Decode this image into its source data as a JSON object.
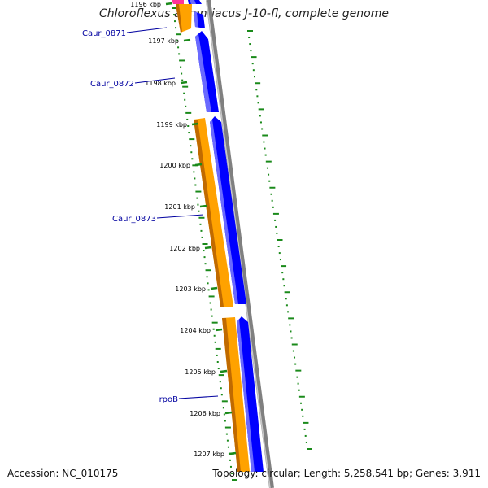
{
  "title": "Chloroflexus aurantiacus J-10-fl, complete genome",
  "accession": "Accession: NC_010175",
  "summary": "Topology: circular; Length: 5,258,541 bp; Genes: 3,911",
  "colors": {
    "forward_gene": "#ffa200",
    "forward_gene_shadow": "#c06a00",
    "reverse_gene": "#0000ff",
    "reverse_gene_highlight": "#6a6aff",
    "pink_gene": "#ff3399",
    "backbone": "#808080",
    "gc_ticks": "#1a8a1a",
    "kbp_tick": "#1a8a1a",
    "gene_label": "#0000a0"
  },
  "ruler": {
    "ticks": [
      {
        "label": "1196 kbp",
        "kbp": 1196
      },
      {
        "label": "1197 kbp",
        "kbp": 1197
      },
      {
        "label": "1198 kbp",
        "kbp": 1198
      },
      {
        "label": "1199 kbp",
        "kbp": 1199
      },
      {
        "label": "1200 kbp",
        "kbp": 1200
      },
      {
        "label": "1201 kbp",
        "kbp": 1201
      },
      {
        "label": "1202 kbp",
        "kbp": 1202
      },
      {
        "label": "1203 kbp",
        "kbp": 1203
      },
      {
        "label": "1204 kbp",
        "kbp": 1204
      },
      {
        "label": "1205 kbp",
        "kbp": 1205
      },
      {
        "label": "1206 kbp",
        "kbp": 1206
      },
      {
        "label": "1207 kbp",
        "kbp": 1207
      }
    ]
  },
  "genes": [
    {
      "label": "Caur_0871"
    },
    {
      "label": "Caur_0872"
    },
    {
      "label": "Caur_0873"
    },
    {
      "label": "rpoB"
    }
  ]
}
